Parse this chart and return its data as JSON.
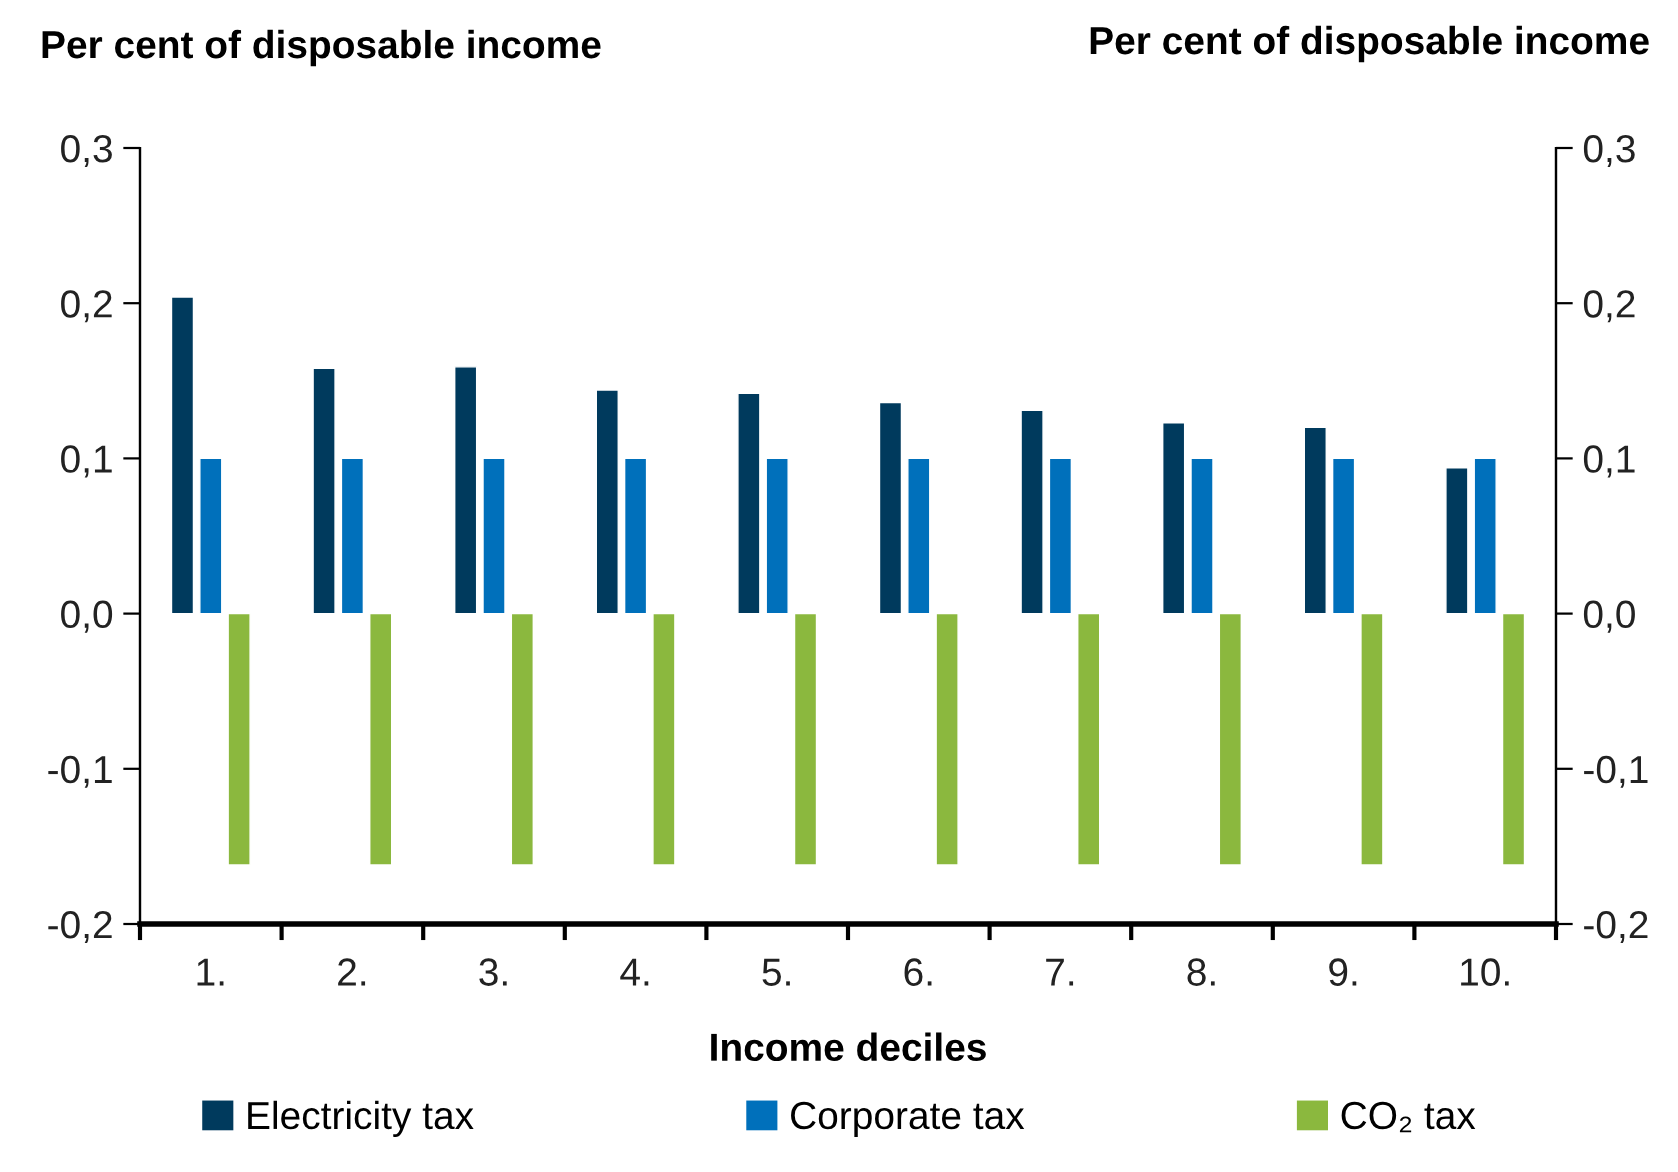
{
  "chart_data": {
    "type": "bar",
    "categories": [
      "1.",
      "2.",
      "3.",
      "4.",
      "5.",
      "6.",
      "7.",
      "8.",
      "9.",
      "10."
    ],
    "series": [
      {
        "name": "Electricity tax",
        "color": "#003a5d",
        "values": [
          0.204,
          0.158,
          0.159,
          0.144,
          0.142,
          0.136,
          0.131,
          0.123,
          0.12,
          0.094
        ]
      },
      {
        "name": "Corporate tax",
        "color": "#0070bb",
        "values": [
          0.1,
          0.1,
          0.1,
          0.1,
          0.1,
          0.1,
          0.1,
          0.1,
          0.1,
          0.1
        ]
      },
      {
        "name": "CO₂ tax",
        "color": "#8bb83e",
        "values": [
          -0.162,
          -0.162,
          -0.162,
          -0.162,
          -0.162,
          -0.162,
          -0.162,
          -0.162,
          -0.162,
          -0.162
        ]
      }
    ],
    "xlabel": "Income deciles",
    "ylabel": "Per cent of disposable income",
    "y2label": "Per cent of disposable income",
    "ylim": [
      -0.2,
      0.3
    ],
    "yticks": [
      {
        "value": -0.2,
        "label": "-0,2"
      },
      {
        "value": -0.1,
        "label": "-0,1"
      },
      {
        "value": 0,
        "label": "0,0"
      },
      {
        "value": 0.1,
        "label": "0,1"
      },
      {
        "value": 0.2,
        "label": "0,2"
      },
      {
        "value": 0.3,
        "label": "0,3"
      }
    ],
    "y2lim": [
      -0.2,
      0.3
    ],
    "y2ticks": [
      {
        "value": -0.2,
        "label": "-0,2"
      },
      {
        "value": -0.1,
        "label": "-0,1"
      },
      {
        "value": 0,
        "label": "0,0"
      },
      {
        "value": 0.1,
        "label": "0,1"
      },
      {
        "value": 0.2,
        "label": "0,2"
      },
      {
        "value": 0.3,
        "label": "0,3"
      }
    ],
    "grid": false,
    "legend": "bottom"
  }
}
